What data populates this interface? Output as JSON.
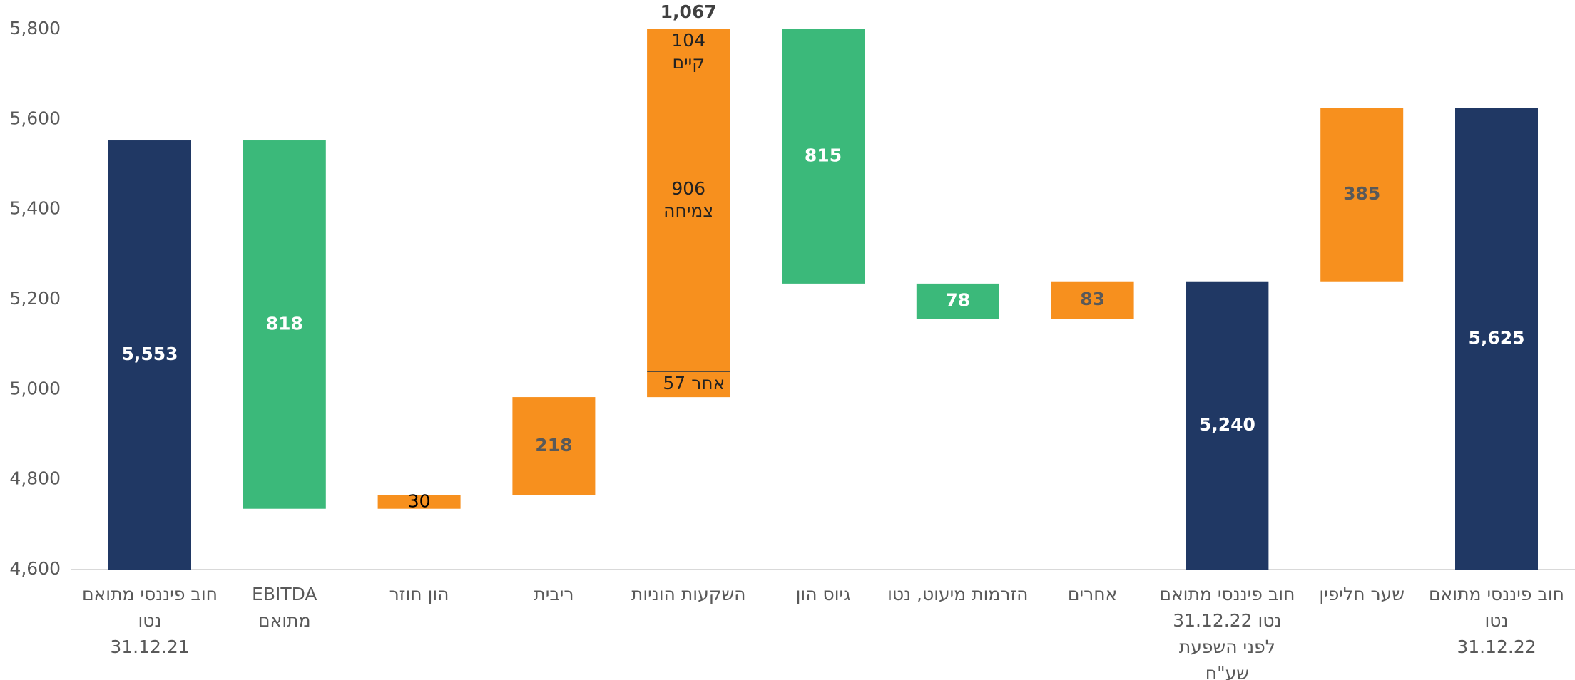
{
  "chart_data": {
    "type": "waterfall",
    "categories": [
      "חוב פיננסי מתואם\nנטו\n31.12.21",
      "EBITDA\nמתואם",
      "הון חוזר",
      "ריבית",
      "השקעות הוניות",
      "גיוס הון",
      "הזרמות מיעוט, נטו",
      "אחרים",
      "חוב פיננסי מתואם\nנטו 31.12.22\nלפני השפעת\nשע\"ח",
      "שער חליפין",
      "חוב פיננסי מתואם\nנטו\n31.12.22"
    ],
    "measure": [
      "total",
      "decrease",
      "increase",
      "increase",
      "increase",
      "decrease",
      "decrease",
      "increase",
      "total",
      "increase",
      "total"
    ],
    "values": [
      5553,
      818,
      30,
      218,
      1067,
      815,
      78,
      83,
      5240,
      385,
      5625
    ],
    "value_labels": [
      "5,553",
      "818",
      "30",
      "218",
      "1,067",
      "815",
      "78",
      "83",
      "5,240",
      "385",
      "5,625"
    ],
    "segments": {
      "index": 4,
      "parts": [
        {
          "name": "אחר",
          "value": 57
        },
        {
          "name": "צמיחה",
          "value": 906
        },
        {
          "name": "קיים",
          "value": 104
        }
      ]
    },
    "colors": {
      "total": "#203864",
      "decrease": "#3bb97a",
      "increase": "#f7901e"
    },
    "ylim": [
      4600,
      5800
    ],
    "yticks": [
      {
        "value": 4600,
        "label": "4,600"
      },
      {
        "value": 4800,
        "label": "4,800"
      },
      {
        "value": 5000,
        "label": "5,000"
      },
      {
        "value": 5200,
        "label": "5,200"
      },
      {
        "value": 5400,
        "label": "5,400"
      },
      {
        "value": 5600,
        "label": "5,600"
      },
      {
        "value": 5800,
        "label": "5,800"
      }
    ],
    "grid": false
  }
}
